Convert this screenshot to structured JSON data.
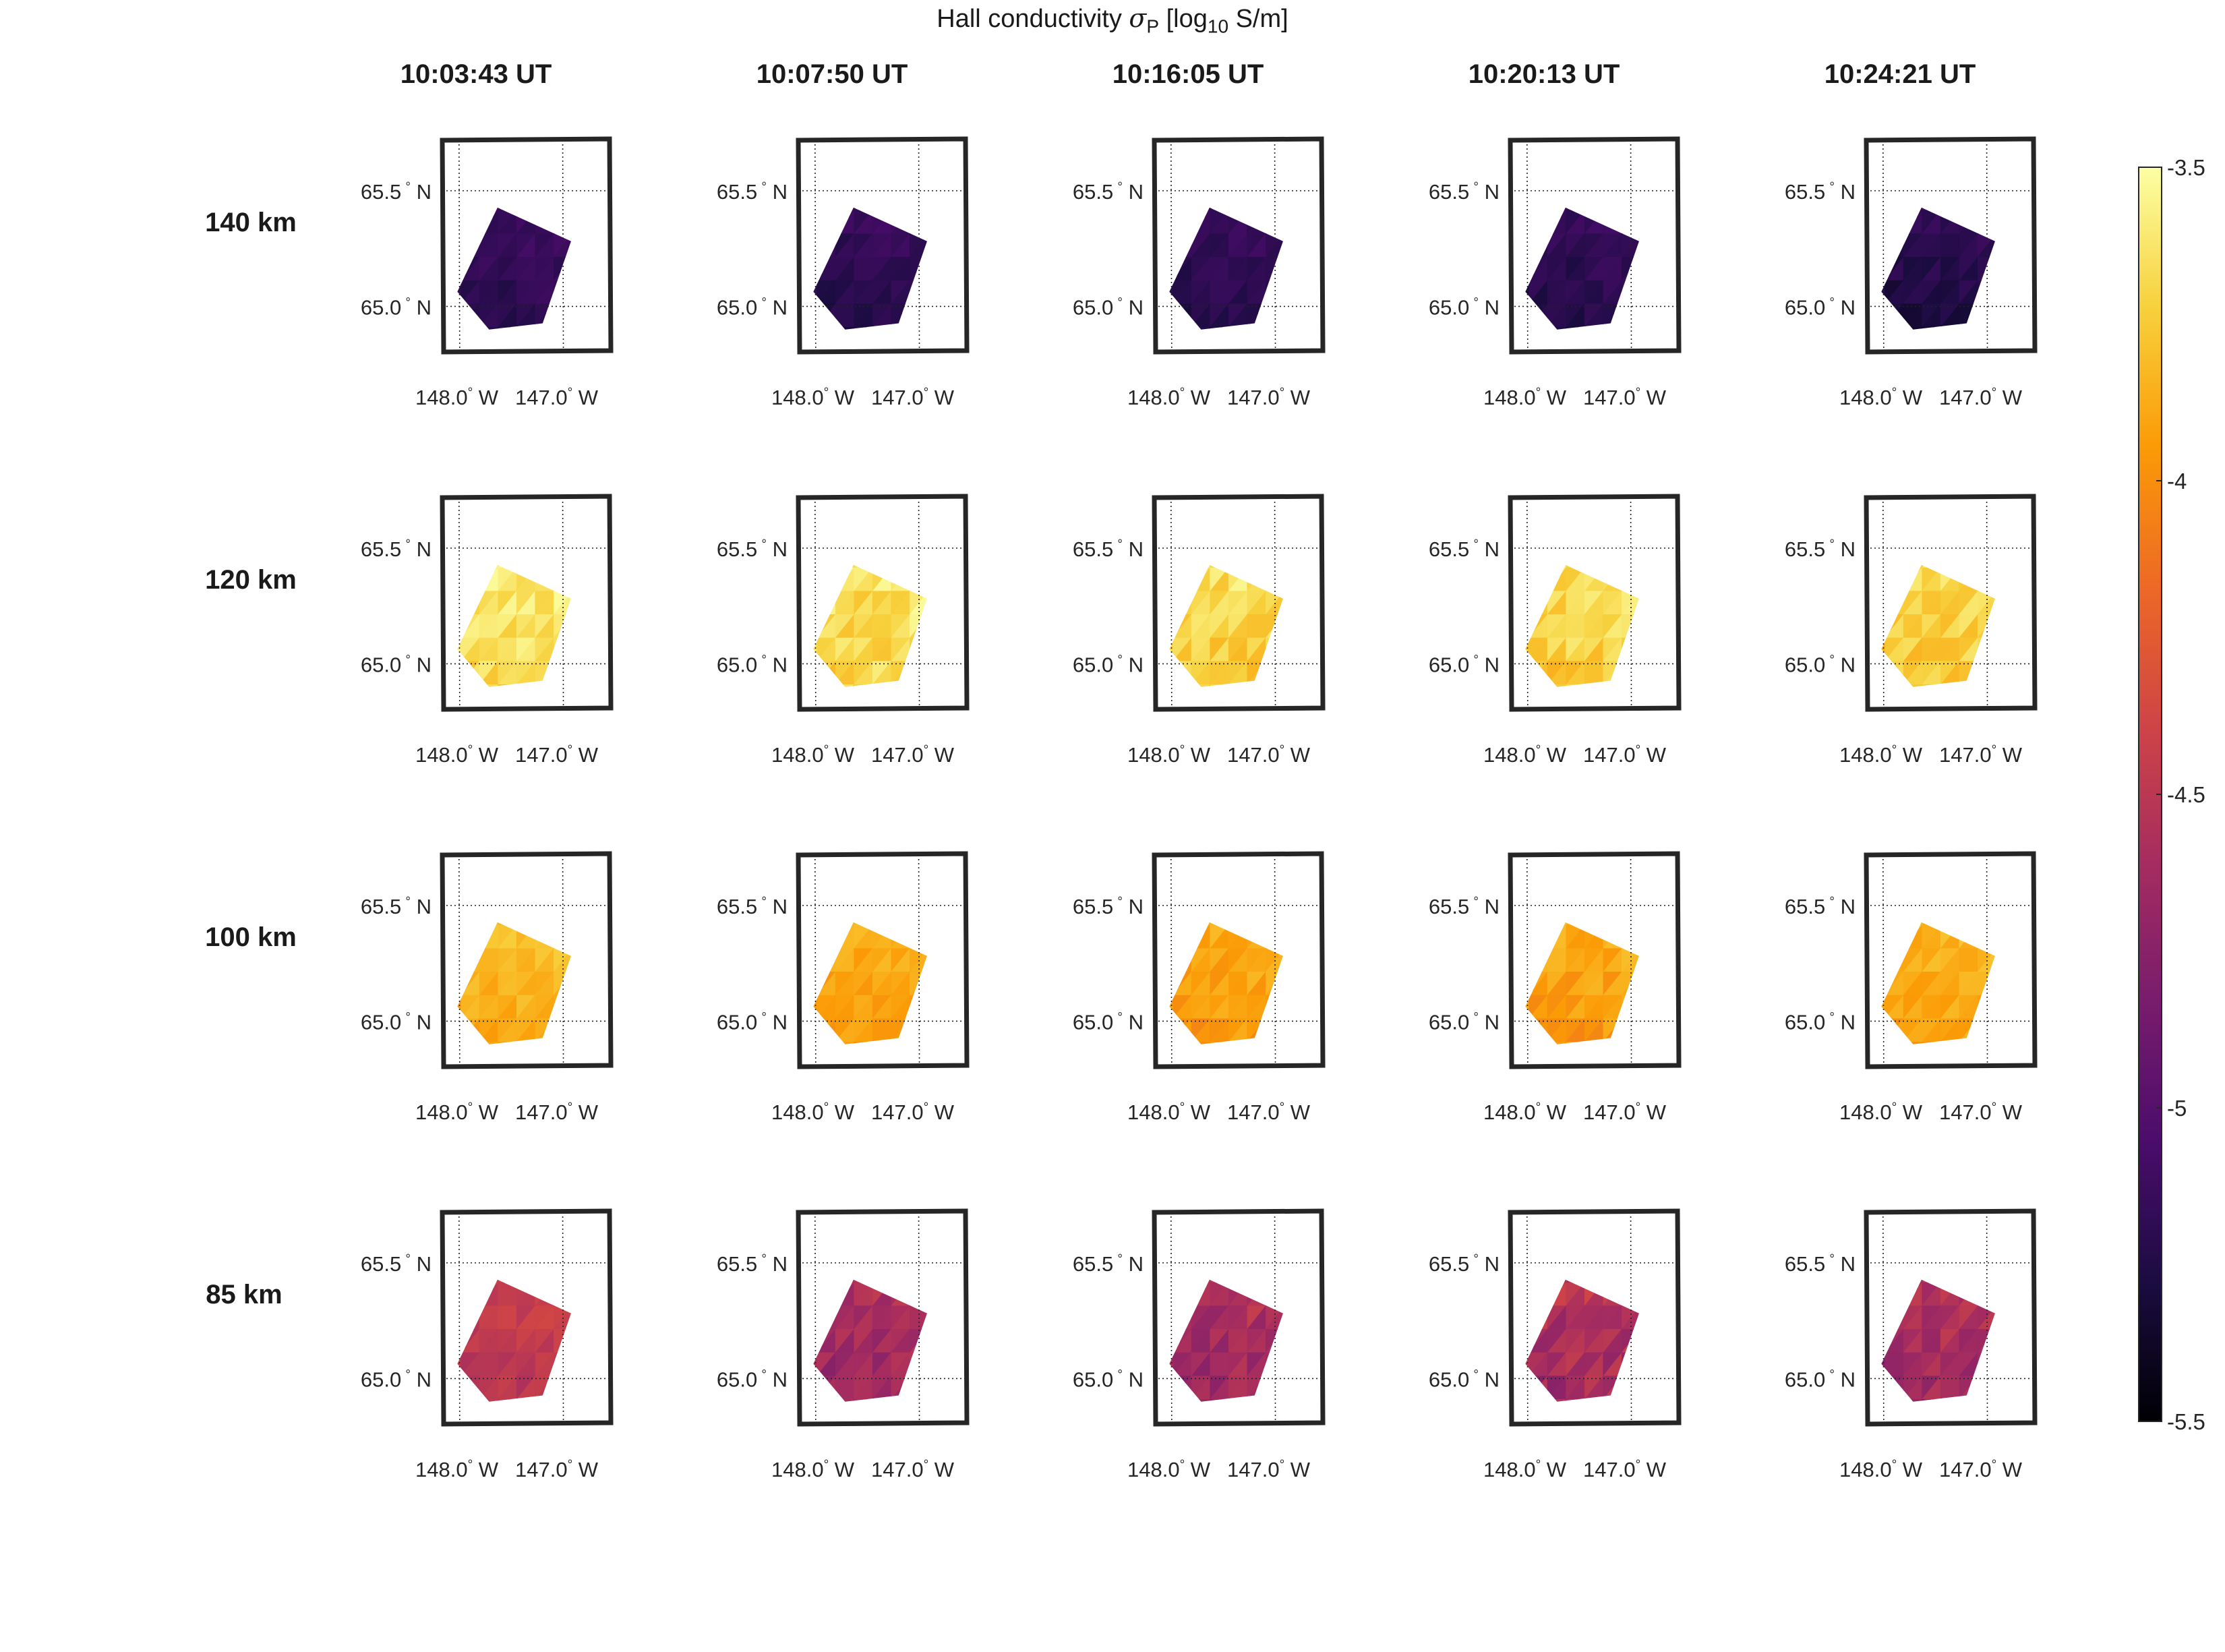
{
  "title": {
    "prefix": "Hall conductivity ",
    "symbol": "σ",
    "symbol_sub": "P",
    "unit_prefix": " [log",
    "unit_sub": "10",
    "unit_suffix": " S/m]"
  },
  "times": [
    "10:03:43 UT",
    "10:07:50 UT",
    "10:16:05 UT",
    "10:20:13 UT",
    "10:24:21 UT"
  ],
  "altitudes": [
    "140 km",
    "120 km",
    "100 km",
    "85 km"
  ],
  "map_ticks": {
    "lat_labels": [
      "65.5",
      "65.0"
    ],
    "lat_suffix": "N",
    "lon_labels": [
      "148.0",
      "147.0"
    ],
    "lon_suffix": "W",
    "degree_symbol": "°"
  },
  "colormap": {
    "name": "inferno",
    "stops": [
      "#000004",
      "#1b0c41",
      "#4a0c6b",
      "#781c6d",
      "#a52c60",
      "#cf4446",
      "#ed6925",
      "#fb9b06",
      "#f7d13d",
      "#fcffa4"
    ]
  },
  "colorbar": {
    "min": -5.5,
    "max": -3.5,
    "tick_values": [
      -3.5,
      -4,
      -4.5,
      -5,
      -5.5
    ],
    "tick_labels": [
      "-3.5",
      "-4",
      "-4.5",
      "-5",
      "-5.5"
    ]
  },
  "chart_data": {
    "type": "heatmap",
    "title": "Hall conductivity σP [log10 S/m]",
    "xlabel": "",
    "ylabel": "",
    "columns": [
      "10:03:43 UT",
      "10:07:50 UT",
      "10:16:05 UT",
      "10:20:13 UT",
      "10:24:21 UT"
    ],
    "rows": [
      "140 km",
      "120 km",
      "100 km",
      "85 km"
    ],
    "lat_range": [
      64.9,
      65.7
    ],
    "lon_range": [
      -148.3,
      -146.8
    ],
    "grid": true,
    "legend": "colorbar-right",
    "clim": [
      -5.5,
      -3.5
    ],
    "panels": [
      {
        "time": "10:03:43 UT",
        "altitude": "140 km",
        "mean": -5.15,
        "spread": 0.06
      },
      {
        "time": "10:07:50 UT",
        "altitude": "140 km",
        "mean": -5.17,
        "spread": 0.06
      },
      {
        "time": "10:16:05 UT",
        "altitude": "140 km",
        "mean": -5.17,
        "spread": 0.06
      },
      {
        "time": "10:20:13 UT",
        "altitude": "140 km",
        "mean": -5.18,
        "spread": 0.07
      },
      {
        "time": "10:24:21 UT",
        "altitude": "140 km",
        "mean": -5.2,
        "spread": 0.07
      },
      {
        "time": "10:03:43 UT",
        "altitude": "120 km",
        "mean": -3.62,
        "spread": 0.1
      },
      {
        "time": "10:07:50 UT",
        "altitude": "120 km",
        "mean": -3.65,
        "spread": 0.12
      },
      {
        "time": "10:16:05 UT",
        "altitude": "120 km",
        "mean": -3.68,
        "spread": 0.11
      },
      {
        "time": "10:20:13 UT",
        "altitude": "120 km",
        "mean": -3.68,
        "spread": 0.11
      },
      {
        "time": "10:24:21 UT",
        "altitude": "120 km",
        "mean": -3.7,
        "spread": 0.1
      },
      {
        "time": "10:03:43 UT",
        "altitude": "100 km",
        "mean": -3.82,
        "spread": 0.07
      },
      {
        "time": "10:07:50 UT",
        "altitude": "100 km",
        "mean": -3.88,
        "spread": 0.07
      },
      {
        "time": "10:16:05 UT",
        "altitude": "100 km",
        "mean": -3.9,
        "spread": 0.08
      },
      {
        "time": "10:20:13 UT",
        "altitude": "100 km",
        "mean": -3.9,
        "spread": 0.09
      },
      {
        "time": "10:24:21 UT",
        "altitude": "100 km",
        "mean": -3.86,
        "spread": 0.07
      },
      {
        "time": "10:03:43 UT",
        "altitude": "85 km",
        "mean": -4.45,
        "spread": 0.07
      },
      {
        "time": "10:07:50 UT",
        "altitude": "85 km",
        "mean": -4.6,
        "spread": 0.1
      },
      {
        "time": "10:16:05 UT",
        "altitude": "85 km",
        "mean": -4.58,
        "spread": 0.12
      },
      {
        "time": "10:20:13 UT",
        "altitude": "85 km",
        "mean": -4.55,
        "spread": 0.14
      },
      {
        "time": "10:24:21 UT",
        "altitude": "85 km",
        "mean": -4.58,
        "spread": 0.12
      }
    ]
  }
}
